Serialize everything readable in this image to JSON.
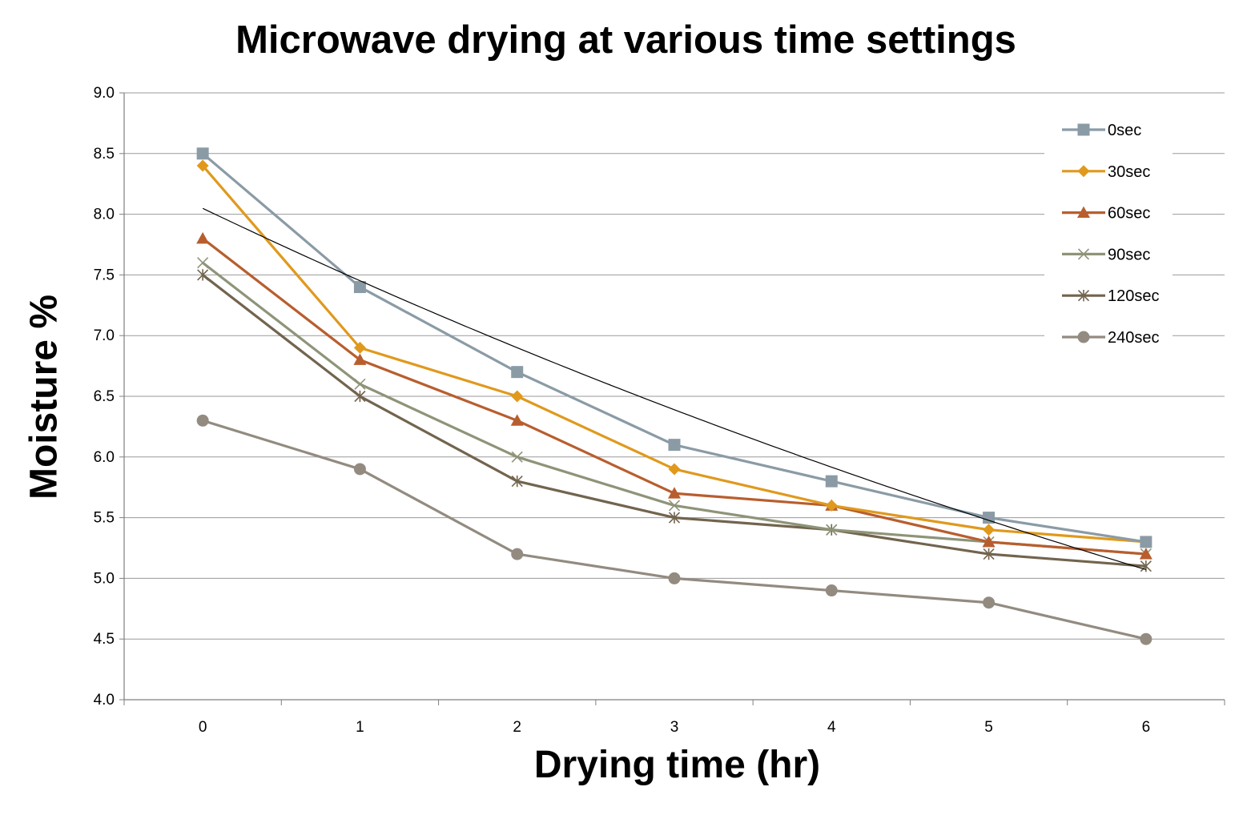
{
  "chart_data": {
    "type": "line",
    "title": "Microwave drying at various time settings",
    "xlabel": "Drying time (hr)",
    "ylabel": "Moisture %",
    "x": [
      0,
      1,
      2,
      3,
      4,
      5,
      6
    ],
    "xlim": [
      -0.5,
      6.5
    ],
    "ylim": [
      4.0,
      9.0
    ],
    "y_ticks": [
      "4.0",
      "4.5",
      "5.0",
      "5.5",
      "6.0",
      "6.5",
      "7.0",
      "7.5",
      "8.0",
      "8.5",
      "9.0"
    ],
    "x_ticks": [
      "0",
      "1",
      "2",
      "3",
      "4",
      "5",
      "6"
    ],
    "grid": "horizontal",
    "legend_position": "top-right",
    "series": [
      {
        "name": "0sec",
        "values": [
          8.5,
          7.4,
          6.7,
          6.1,
          5.8,
          5.5,
          5.3
        ],
        "color": "#8A9BA6",
        "marker": "square"
      },
      {
        "name": "30sec",
        "values": [
          8.4,
          6.9,
          6.5,
          5.9,
          5.6,
          5.4,
          5.3
        ],
        "color": "#E0991D",
        "marker": "diamond"
      },
      {
        "name": "60sec",
        "values": [
          7.8,
          6.8,
          6.3,
          5.7,
          5.6,
          5.3,
          5.2
        ],
        "color": "#B85E2E",
        "marker": "triangle"
      },
      {
        "name": "90sec",
        "values": [
          7.6,
          6.6,
          6.0,
          5.6,
          5.4,
          5.3,
          5.2
        ],
        "color": "#8E9478",
        "marker": "x"
      },
      {
        "name": "120sec",
        "values": [
          7.5,
          6.5,
          5.8,
          5.5,
          5.4,
          5.2,
          5.1
        ],
        "color": "#72644E",
        "marker": "star"
      },
      {
        "name": "240sec",
        "values": [
          6.3,
          5.9,
          5.2,
          5.0,
          4.9,
          4.8,
          4.5
        ],
        "color": "#938B80",
        "marker": "circle"
      }
    ],
    "trendline": {
      "type": "exponential",
      "series": "0sec",
      "color": "#000000"
    }
  }
}
